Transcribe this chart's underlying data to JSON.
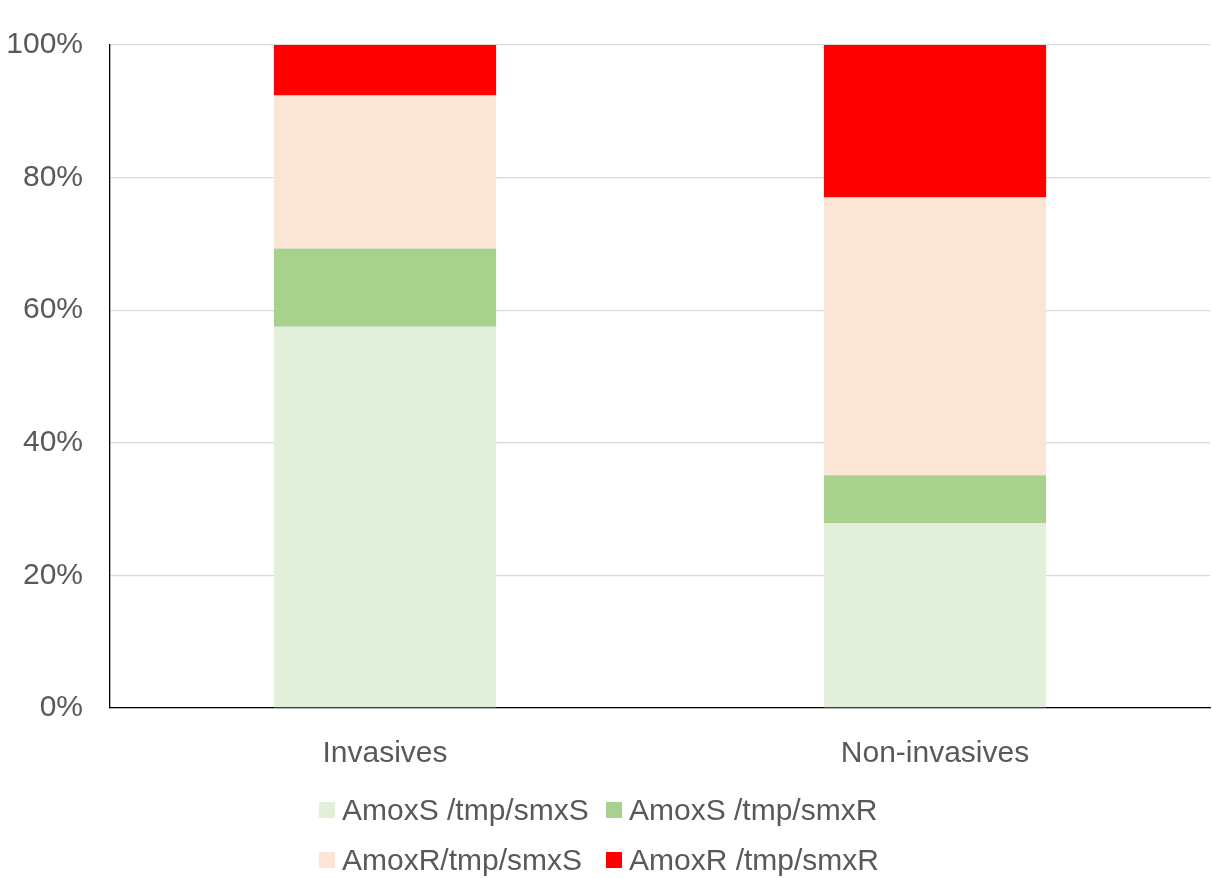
{
  "chart_data": {
    "type": "bar",
    "stacked": true,
    "categories": [
      "Invasives",
      "Non-invasives"
    ],
    "series": [
      {
        "name": "AmoxS /tmp/smxS",
        "color": "#e2efda",
        "values": [
          57.5,
          27.9
        ]
      },
      {
        "name": "AmoxS /tmp/smxR",
        "color": "#a9d18e",
        "values": [
          11.8,
          7.2
        ]
      },
      {
        "name": "AmoxR/tmp/smxS",
        "color": "#fbe5d6",
        "values": [
          23.1,
          41.9
        ]
      },
      {
        "name": "AmoxR /tmp/smxR",
        "color": "#ff0000",
        "values": [
          7.6,
          23
        ]
      }
    ],
    "ylim": [
      0,
      100
    ],
    "yticks": [
      {
        "value": 0,
        "label": "0%"
      },
      {
        "value": 20,
        "label": "20%"
      },
      {
        "value": 40,
        "label": "40%"
      },
      {
        "value": 60,
        "label": "60%"
      },
      {
        "value": 80,
        "label": "80%"
      },
      {
        "value": 100,
        "label": "100%"
      }
    ],
    "grid": "y",
    "legend": "bottom"
  }
}
